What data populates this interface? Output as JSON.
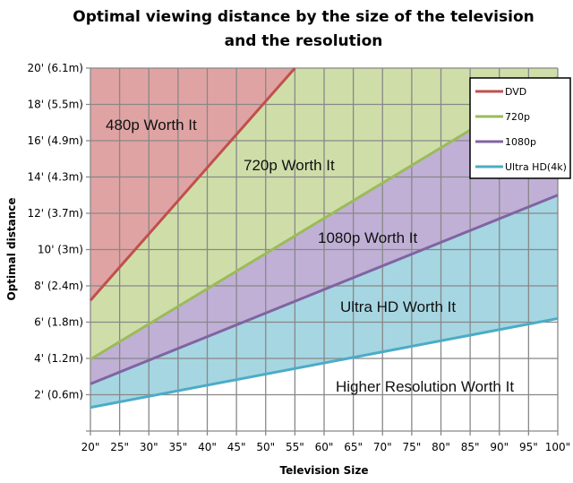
{
  "chart_data": {
    "type": "area",
    "title": [
      "Optimal viewing distance by the size of the television",
      "and the resolution"
    ],
    "xlabel": "Television Size",
    "ylabel": "Optimal distance",
    "xlim": [
      20,
      100
    ],
    "ylim": [
      0,
      20
    ],
    "grid": true,
    "legend_placement": "top-right",
    "x": [
      20,
      25,
      30,
      35,
      40,
      45,
      50,
      55,
      60,
      65,
      70,
      75,
      80,
      85,
      90,
      95,
      100
    ],
    "x_tick_labels": [
      "20\"",
      "25\"",
      "30\"",
      "35\"",
      "40\"",
      "45\"",
      "50\"",
      "55\"",
      "60\"",
      "65\"",
      "70\"",
      "75\"",
      "80\"",
      "85\"",
      "90\"",
      "95\"",
      "100\""
    ],
    "y_ticks": [
      0,
      2,
      4,
      6,
      8,
      10,
      12,
      14,
      16,
      18,
      20
    ],
    "y_tick_labels": [
      "",
      "2' (0.6m)",
      "4' (1.2m)",
      "6' (1.8m)",
      "8' (2.4m)",
      "10' (3m)",
      "12' (3.7m)",
      "14' (4.3m)",
      "16' (4.9m)",
      "18' (5.5m)",
      "20' (6.1m)"
    ],
    "series": [
      {
        "name": "DVD",
        "color": "#c0504d",
        "fill": "#e0a3a3",
        "x": [
          20,
          55
        ],
        "values": [
          7.2,
          20
        ]
      },
      {
        "name": "720p",
        "color": "#9bbb59",
        "fill": "#cfdea9",
        "x": [
          20,
          100
        ],
        "values": [
          3.95,
          19.5
        ]
      },
      {
        "name": "1080p",
        "color": "#8064a2",
        "fill": "#c0b0d6",
        "x": [
          20,
          100
        ],
        "values": [
          2.6,
          13.0
        ]
      },
      {
        "name": "Ultra HD(4k)",
        "color": "#4bacc6",
        "fill": "#a6d6e2",
        "x": [
          20,
          100
        ],
        "values": [
          1.3,
          6.2
        ]
      }
    ],
    "annotations": [
      "480p Worth It",
      "720p Worth It",
      "1080p Worth It",
      "Ultra HD Worth It",
      "Higher Resolution Worth It"
    ]
  }
}
